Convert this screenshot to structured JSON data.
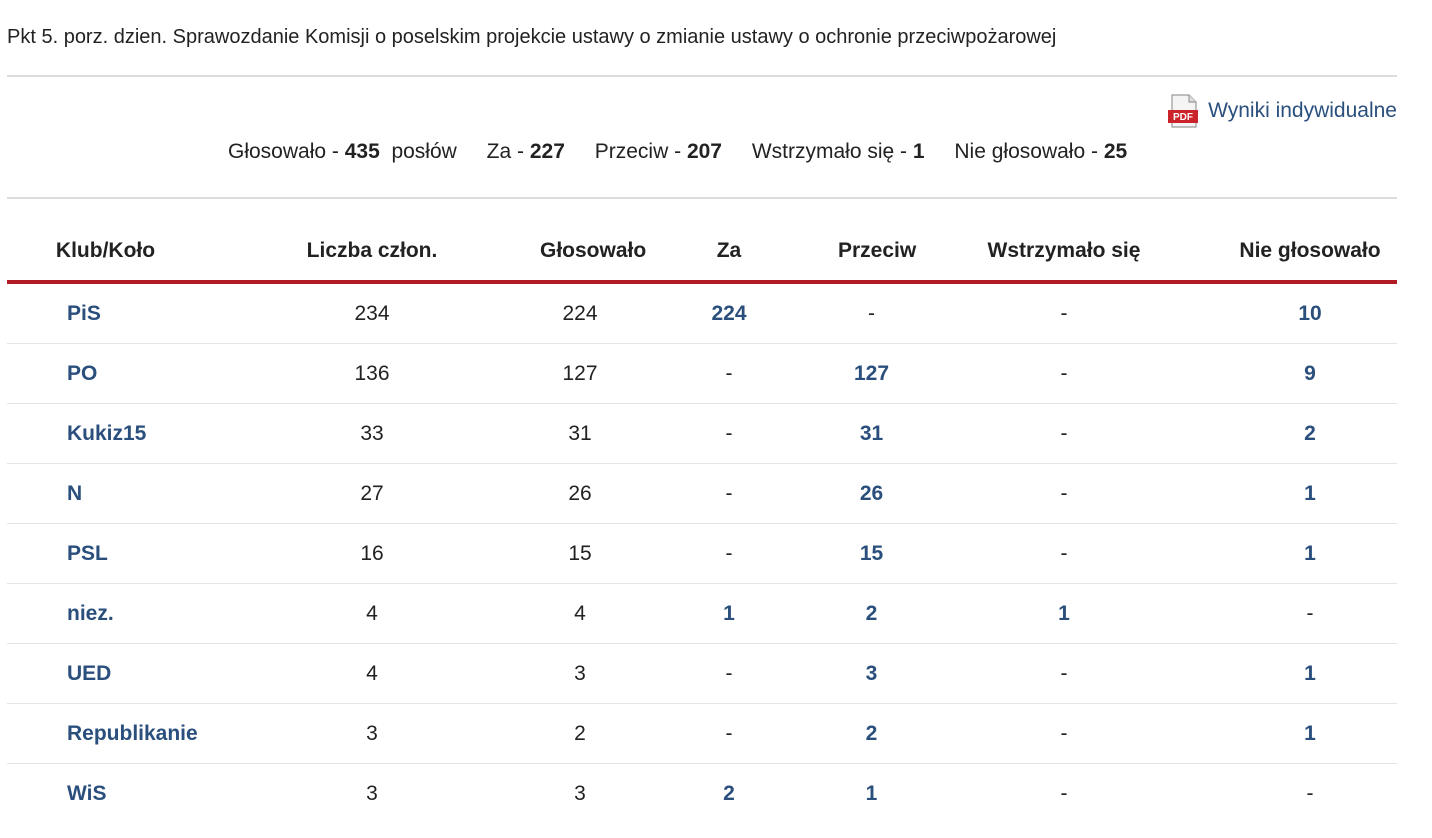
{
  "title": "Pkt 5. porz. dzien. Sprawozdanie Komisji o poselskim projekcie ustawy o zmianie ustawy o ochronie przeciwpożarowej",
  "pdf_link": {
    "icon": "pdf-icon",
    "label": "Wyniki indywidualne"
  },
  "summary": {
    "voted_label": "Głosowało -",
    "voted_value": "435",
    "voted_unit": "posłów",
    "za_label": "Za -",
    "za_value": "227",
    "przeciw_label": "Przeciw -",
    "przeciw_value": "207",
    "wstrz_label": "Wstrzymało się -",
    "wstrz_value": "1",
    "nie_label": "Nie głosowało -",
    "nie_value": "25"
  },
  "table": {
    "headers": [
      "Klub/Koło",
      "Liczba człon.",
      "Głosowało",
      "Za",
      "Przeciw",
      "Wstrzymało się",
      "Nie głosowało"
    ],
    "rows": [
      {
        "club": "PiS",
        "members": "234",
        "voted": "224",
        "za": "224",
        "przeciw": "-",
        "wstrz": "-",
        "nie": "10"
      },
      {
        "club": "PO",
        "members": "136",
        "voted": "127",
        "za": "-",
        "przeciw": "127",
        "wstrz": "-",
        "nie": "9"
      },
      {
        "club": "Kukiz15",
        "members": "33",
        "voted": "31",
        "za": "-",
        "przeciw": "31",
        "wstrz": "-",
        "nie": "2"
      },
      {
        "club": "N",
        "members": "27",
        "voted": "26",
        "za": "-",
        "przeciw": "26",
        "wstrz": "-",
        "nie": "1"
      },
      {
        "club": "PSL",
        "members": "16",
        "voted": "15",
        "za": "-",
        "przeciw": "15",
        "wstrz": "-",
        "nie": "1"
      },
      {
        "club": "niez.",
        "members": "4",
        "voted": "4",
        "za": "1",
        "przeciw": "2",
        "wstrz": "1",
        "nie": "-"
      },
      {
        "club": "UED",
        "members": "4",
        "voted": "3",
        "za": "-",
        "przeciw": "3",
        "wstrz": "-",
        "nie": "1"
      },
      {
        "club": "Republikanie",
        "members": "3",
        "voted": "2",
        "za": "-",
        "przeciw": "2",
        "wstrz": "-",
        "nie": "1"
      },
      {
        "club": "WiS",
        "members": "3",
        "voted": "3",
        "za": "2",
        "przeciw": "1",
        "wstrz": "-",
        "nie": "-"
      }
    ]
  },
  "colors": {
    "link": "#2a4f7c",
    "header_rule": "#b31b24",
    "divider": "#dcdcdc"
  }
}
